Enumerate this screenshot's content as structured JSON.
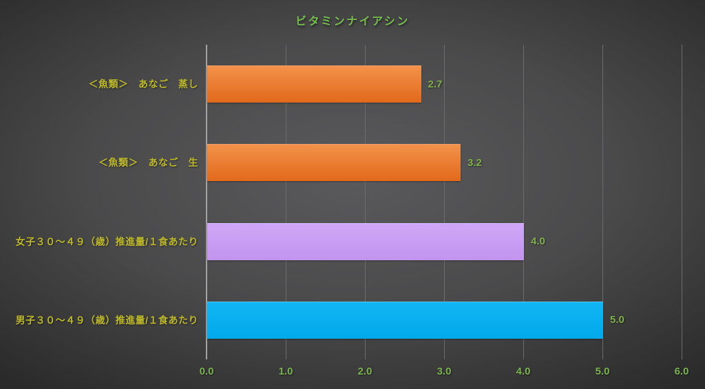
{
  "chart_data": {
    "type": "bar",
    "orientation": "horizontal",
    "title": "ビタミンナイアシン",
    "categories": [
      "＜魚類＞　あなご　蒸し",
      "＜魚類＞　あなご　生",
      "女子３０～４９（歳）推進量/１食あたり",
      "男子３０～４９（歳）推進量/１食あたり"
    ],
    "values": [
      2.7,
      3.2,
      4.0,
      5.0
    ],
    "value_labels": [
      "2.7",
      "3.2",
      "4.0",
      "5.0"
    ],
    "bar_colors": [
      "#ed7d31",
      "#ed7d31",
      "#c9a0f1",
      "#00b0f0"
    ],
    "bar_gradients": [
      {
        "top": "#f2924a",
        "bottom": "#e2691c"
      },
      {
        "top": "#f2924a",
        "bottom": "#e2691c"
      },
      {
        "top": "#cfa6f7",
        "bottom": "#c294ee"
      },
      {
        "top": "#12b5f3",
        "bottom": "#00a9ea"
      }
    ],
    "xlim": [
      0,
      6
    ],
    "x_ticks": [
      "0.0",
      "1.0",
      "2.0",
      "3.0",
      "4.0",
      "5.0",
      "6.0"
    ],
    "grid": true,
    "legend": false
  },
  "colors": {
    "title_text": "#76bd50",
    "category_text": "#bdb92b",
    "value_text": "#7fae4a",
    "axis_text": "#79b34f",
    "gridline": "#6c6c6c",
    "axis_line": "#a3a3a3",
    "bg_center": "#5a5a5c",
    "bg_edge": "#2a2a2a"
  }
}
